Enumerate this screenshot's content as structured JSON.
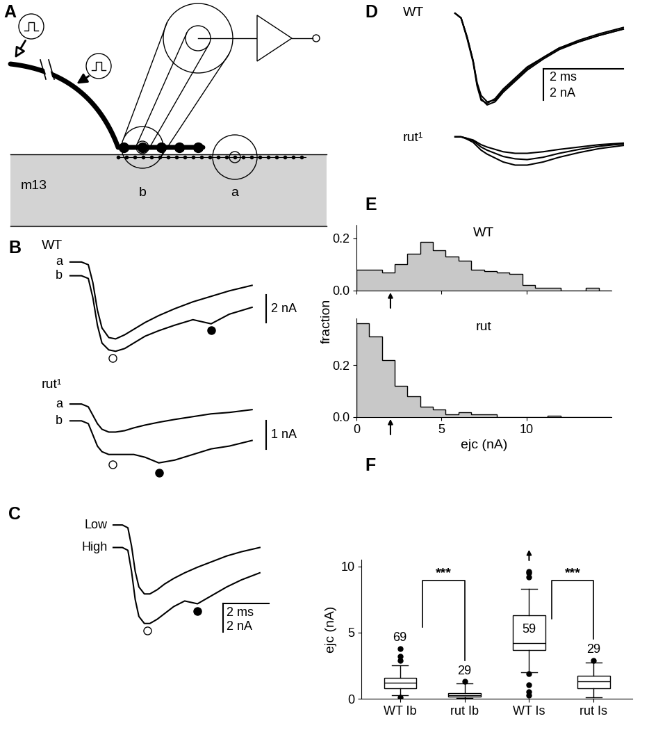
{
  "diagram": {
    "panel": "A",
    "muscle": "m13",
    "electrodes": [
      "b",
      "a"
    ]
  },
  "chart_data": [
    {
      "type": "line",
      "panel": "B",
      "title": "WT",
      "tick_labels": false,
      "x": [
        0,
        0.4,
        0.64,
        0.8,
        0.96,
        1.12,
        1.36,
        1.6,
        1.92,
        2.24,
        2.64,
        3.12,
        3.68,
        4.32,
        4.96,
        5.6,
        6.4
      ],
      "xlim": [
        -1.0,
        7.8
      ],
      "ylim": [
        -7.5,
        0.6
      ],
      "series": [
        {
          "name": "a",
          "color": "#000000",
          "values": [
            0,
            0,
            -0.2,
            -1.5,
            -3.5,
            -4.8,
            -5.5,
            -5.6,
            -5.3,
            -4.9,
            -4.4,
            -3.9,
            -3.4,
            -2.9,
            -2.5,
            -2.1,
            -1.7
          ]
        },
        {
          "name": "b",
          "color": "#000000",
          "values": [
            -1,
            -1,
            -1.2,
            -2.6,
            -4.6,
            -5.9,
            -6.4,
            -6.5,
            -6.3,
            -5.9,
            -5.4,
            -5.0,
            -4.6,
            -4.2,
            -4.5,
            -3.8,
            -3.3
          ]
        }
      ],
      "markers": [
        {
          "marker": "open",
          "x": 1.5,
          "y": -7.0
        },
        {
          "marker": "filled",
          "x": 4.96,
          "y": -4.95
        }
      ],
      "scale_bar": {
        "y": {
          "value": 2,
          "label": "2 nA"
        }
      }
    },
    {
      "type": "line",
      "title": "rut¹",
      "tick_labels": false,
      "x": [
        0,
        0.4,
        0.64,
        0.8,
        0.96,
        1.12,
        1.36,
        1.6,
        1.92,
        2.24,
        2.64,
        3.12,
        3.68,
        4.32,
        4.96,
        5.6,
        6.4
      ],
      "xlim": [
        -1.0,
        7.8
      ],
      "ylim": [
        -2.7,
        0.4
      ],
      "series": [
        {
          "name": "a",
          "color": "#000000",
          "values": [
            0,
            0,
            -0.1,
            -0.4,
            -0.7,
            -0.9,
            -1.0,
            -1.0,
            -0.95,
            -0.85,
            -0.75,
            -0.65,
            -0.55,
            -0.45,
            -0.35,
            -0.3,
            -0.2
          ]
        },
        {
          "name": "b",
          "color": "#000000",
          "values": [
            -0.6,
            -0.6,
            -0.7,
            -1.1,
            -1.5,
            -1.7,
            -1.8,
            -1.8,
            -1.8,
            -1.8,
            -1.9,
            -2.1,
            -2.0,
            -1.8,
            -1.6,
            -1.5,
            -1.3
          ]
        }
      ],
      "markers": [
        {
          "marker": "open",
          "x": 1.5,
          "y": -2.15
        },
        {
          "marker": "filled",
          "x": 3.12,
          "y": -2.45
        }
      ],
      "scale_bar": {
        "y": {
          "value": 1,
          "label": "1 nA"
        }
      }
    },
    {
      "type": "line",
      "panel": "C",
      "tick_labels": false,
      "x": [
        0,
        0.4,
        0.64,
        0.8,
        0.96,
        1.12,
        1.36,
        1.6,
        1.92,
        2.24,
        2.64,
        3.12,
        3.68,
        4.32,
        4.96,
        5.6,
        6.4
      ],
      "xlim": [
        -1.0,
        7.8
      ],
      "ylim": [
        -7.9,
        0.5
      ],
      "series": [
        {
          "name": "Low",
          "color": "#000000",
          "values": [
            0,
            0,
            -0.2,
            -1.5,
            -3.3,
            -4.4,
            -4.9,
            -4.9,
            -4.6,
            -4.2,
            -3.8,
            -3.4,
            -3.0,
            -2.6,
            -2.2,
            -1.9,
            -1.6
          ]
        },
        {
          "name": "High",
          "color": "#000000",
          "values": [
            -1.6,
            -1.6,
            -1.8,
            -3.3,
            -5.3,
            -6.5,
            -7.0,
            -7.0,
            -6.7,
            -6.3,
            -5.8,
            -5.4,
            -5.6,
            -5.0,
            -4.4,
            -3.9,
            -3.4
          ]
        }
      ],
      "markers": [
        {
          "marker": "open",
          "x": 1.5,
          "y": -7.5
        },
        {
          "marker": "filled",
          "x": 3.68,
          "y": -6.1
        }
      ],
      "scale_bar": {
        "x": {
          "value": 2,
          "label": "2 ms"
        },
        "y": {
          "value": 2,
          "label": "2 nA"
        }
      }
    },
    {
      "type": "line",
      "panel": "D",
      "title": "WT",
      "tick_labels": false,
      "x": [
        0,
        0.15,
        0.3,
        0.45,
        0.55,
        0.65,
        0.8,
        1.0,
        1.2,
        1.5,
        1.8,
        2.2,
        2.6,
        3.1,
        3.6,
        4.2
      ],
      "xlim": [
        -1.3,
        4.6
      ],
      "ylim": [
        -6.2,
        0.4
      ],
      "series": [
        {
          "color": "#000000",
          "values": [
            0,
            -0.3,
            -1.5,
            -3.0,
            -4.5,
            -5.4,
            -5.8,
            -5.6,
            -5.0,
            -4.3,
            -3.6,
            -2.9,
            -2.3,
            -1.8,
            -1.4,
            -1.0
          ]
        },
        {
          "color": "#000000",
          "values": [
            0,
            -0.3,
            -1.5,
            -3.0,
            -4.4,
            -5.2,
            -5.6,
            -5.5,
            -4.9,
            -4.2,
            -3.5,
            -2.8,
            -2.2,
            -1.7,
            -1.3,
            -0.9
          ]
        },
        {
          "color": "#000000",
          "values": [
            0,
            -0.3,
            -1.6,
            -3.1,
            -4.6,
            -5.5,
            -5.7,
            -5.4,
            -4.8,
            -4.1,
            -3.4,
            -2.8,
            -2.2,
            -1.8,
            -1.4,
            -1.0
          ]
        }
      ],
      "scale_bar": {
        "x": {
          "value": 2,
          "label": "2 ms"
        },
        "y": {
          "value": 2,
          "label": "2 nA"
        }
      }
    },
    {
      "type": "line",
      "title": "rut¹",
      "tick_labels": false,
      "x": [
        0,
        0.15,
        0.3,
        0.45,
        0.55,
        0.65,
        0.8,
        1.0,
        1.2,
        1.5,
        1.8,
        2.2,
        2.6,
        3.1,
        3.6,
        4.2
      ],
      "xlim": [
        -1.3,
        4.6
      ],
      "ylim": [
        -2.0,
        0.3
      ],
      "series": [
        {
          "color": "#000000",
          "values": [
            0,
            0,
            -0.1,
            -0.2,
            -0.35,
            -0.5,
            -0.65,
            -0.8,
            -0.95,
            -1.05,
            -1.05,
            -0.95,
            -0.8,
            -0.65,
            -0.5,
            -0.4
          ]
        },
        {
          "color": "#000000",
          "values": [
            0,
            0,
            -0.1,
            -0.25,
            -0.45,
            -0.65,
            -0.85,
            -1.05,
            -1.25,
            -1.4,
            -1.45,
            -1.3,
            -1.05,
            -0.8,
            -0.6,
            -0.45
          ]
        },
        {
          "color": "#000000",
          "values": [
            0,
            0,
            -0.15,
            -0.35,
            -0.6,
            -0.85,
            -1.1,
            -1.35,
            -1.6,
            -1.8,
            -1.8,
            -1.6,
            -1.3,
            -1.0,
            -0.75,
            -0.55
          ]
        }
      ]
    },
    {
      "type": "histogram",
      "panel": "E",
      "title": "WT",
      "color": "#c8c8c8",
      "bins": [
        0,
        0.75,
        1.5,
        2.25,
        3,
        3.75,
        4.5,
        5.25,
        6,
        6.75,
        7.5,
        8.25,
        9,
        9.75,
        10.5,
        11.25,
        12,
        12.75,
        13.5,
        14.25,
        15
      ],
      "counts": [
        0.08,
        0.08,
        0.07,
        0.1,
        0.14,
        0.185,
        0.155,
        0.13,
        0.115,
        0.08,
        0.075,
        0.07,
        0.065,
        0.02,
        0.01,
        0.01,
        0.0,
        0.0,
        0.01,
        0.0
      ],
      "xlim": [
        0,
        15
      ],
      "ylim": [
        0,
        0.25
      ],
      "xticks": [
        0,
        5,
        10
      ],
      "yticks": [
        {
          "value": 0.0,
          "label": "0.0"
        },
        {
          "value": 0.2,
          "label": "0.2"
        }
      ],
      "tick_labels": "y",
      "y_label": "fraction",
      "arrow": 2.0
    },
    {
      "type": "histogram",
      "title": "rut",
      "color": "#c8c8c8",
      "bins": [
        0,
        0.75,
        1.5,
        2.25,
        3,
        3.75,
        4.5,
        5.25,
        6,
        6.75,
        7.5,
        8.25,
        9,
        9.75,
        10.5,
        11.25,
        12,
        12.75,
        13.5,
        14.25,
        15
      ],
      "counts": [
        0.36,
        0.31,
        0.22,
        0.12,
        0.08,
        0.04,
        0.03,
        0.01,
        0.02,
        0.01,
        0.01,
        0.0,
        0.0,
        0.0,
        0.0,
        0.005,
        0.0,
        0.0,
        0.0,
        0.0
      ],
      "xlim": [
        0,
        15
      ],
      "ylim": [
        0,
        0.38
      ],
      "xticks": [
        0,
        5,
        10
      ],
      "yticks": [
        {
          "value": 0.0,
          "label": "0.0"
        },
        {
          "value": 0.2,
          "label": "0.2"
        }
      ],
      "x_label": "ejc (nA)",
      "arrow": 2.0
    },
    {
      "type": "box",
      "panel": "F",
      "color": "#ffffff",
      "categories": [
        "WT Ib",
        "rut Ib",
        "WT Is",
        "rut Is"
      ],
      "n": [
        69,
        29,
        59,
        29
      ],
      "boxes": [
        {
          "median": 1.2,
          "q1": 0.8,
          "q3": 1.6,
          "whisker_low": 0.26,
          "whisker_high": 2.5,
          "outliers": [
            2.9,
            3.2,
            3.8,
            0.1
          ]
        },
        {
          "median": 0.25,
          "q1": 0.15,
          "q3": 0.4,
          "whisker_low": 0.05,
          "whisker_high": 1.15,
          "outliers": [
            1.3
          ]
        },
        {
          "median": 4.2,
          "q1": 3.7,
          "q3": 6.3,
          "whisker_low": 2.0,
          "whisker_high": 8.3,
          "outliers": [
            9.5,
            9.6,
            9.2,
            1.9,
            1.05,
            0.5,
            0.25,
            12.0
          ]
        },
        {
          "median": 1.3,
          "q1": 0.8,
          "q3": 1.75,
          "whisker_low": 0.1,
          "whisker_high": 2.75,
          "outliers": [
            2.9
          ]
        }
      ],
      "ylim": [
        0,
        10.5
      ],
      "yticks": [
        0,
        5,
        10
      ],
      "y_label": "ejc (nA)",
      "significance": [
        {
          "between": [
            0,
            1
          ],
          "label": "***"
        },
        {
          "between": [
            2,
            3
          ],
          "label": "***"
        }
      ]
    }
  ]
}
